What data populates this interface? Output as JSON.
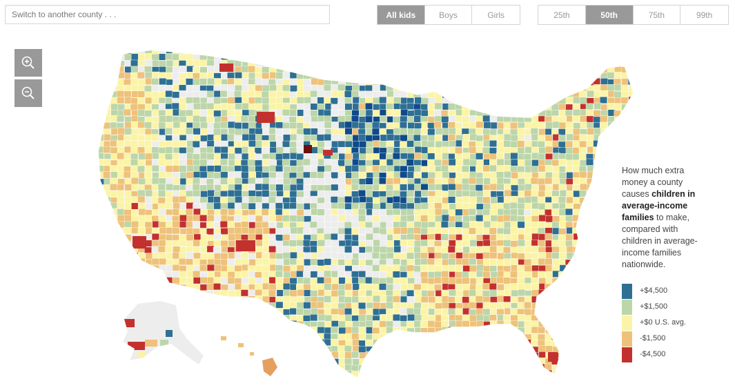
{
  "search": {
    "placeholder": "Switch to another county . . ."
  },
  "group_toggle": {
    "options": [
      "All kids",
      "Boys",
      "Girls"
    ],
    "selected": "All kids"
  },
  "percentile_toggle": {
    "options": [
      "25th",
      "50th",
      "75th",
      "99th"
    ],
    "selected": "50th"
  },
  "zoom": {
    "in_icon": "zoom-in-icon",
    "out_icon": "zoom-out-icon"
  },
  "legend": {
    "text_1": "How much extra money a county causes ",
    "text_bold": "children in average-income families",
    "text_2": " to make, compared with children in average-income families nationwide.",
    "items": [
      {
        "label": "+$4,500",
        "color": "#2e6f94"
      },
      {
        "label": "+$1,500",
        "color": "#bcd6a9"
      },
      {
        "label": "+$0 U.S. avg.",
        "color": "#fbf4a6"
      },
      {
        "label": "-$1,500",
        "color": "#eec27a"
      },
      {
        "label": "-$4,500",
        "color": "#c3312f"
      }
    ]
  },
  "colors": {
    "deep_blue": "#0f4a8a",
    "no_data": "#ededed",
    "darkest_red": "#6b0f0f",
    "inactive_text": "#999999",
    "active_bg": "#999999"
  }
}
